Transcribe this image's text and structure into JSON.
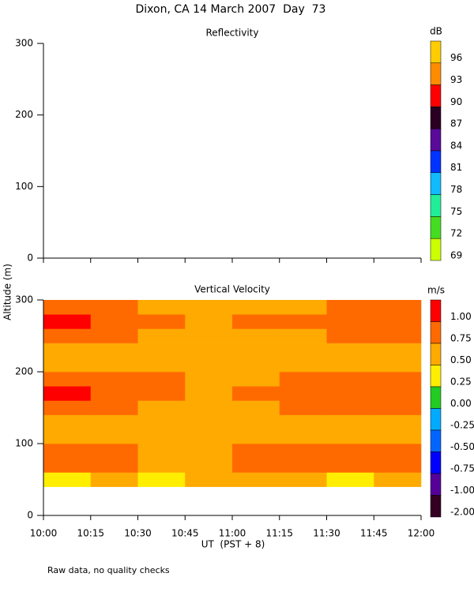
{
  "title": "Dixon, CA 14 March 2007  Day  73",
  "xlabel": "UT  (PST + 8)",
  "ylabel": "Altitude (m)",
  "footnote": "Raw data, no quality checks",
  "chart_data": [
    {
      "type": "heatmap",
      "title": "Reflectivity",
      "ylim": [
        0,
        300
      ],
      "yticks": [
        0,
        100,
        200,
        300
      ],
      "colorbar": {
        "label": "dB",
        "levels": [
          96,
          93,
          90,
          87,
          84,
          81,
          78,
          75,
          72,
          69
        ],
        "colors": [
          "#ffcc00",
          "#ff8c00",
          "#ff0000",
          "#2a0022",
          "#5a0a99",
          "#0033ff",
          "#11bbff",
          "#22ee99",
          "#44dd22",
          "#ccff00"
        ]
      }
    },
    {
      "type": "heatmap",
      "title": "Vertical Velocity",
      "ylim": [
        0,
        300
      ],
      "yticks": [
        0,
        100,
        200,
        300
      ],
      "xlim": [
        10,
        12
      ],
      "xticks": [
        {
          "value": 10,
          "label": "10:00"
        },
        {
          "value": 10.25,
          "label": "10:15"
        },
        {
          "value": 10.5,
          "label": "10:30"
        },
        {
          "value": 10.75,
          "label": "10:45"
        },
        {
          "value": 11,
          "label": "11:00"
        },
        {
          "value": 11.25,
          "label": "11:15"
        },
        {
          "value": 11.5,
          "label": "11:30"
        },
        {
          "value": 11.75,
          "label": "11:45"
        },
        {
          "value": 12,
          "label": "12:00"
        }
      ],
      "x_edges": [
        10,
        10.25,
        10.5,
        10.75,
        11,
        11.25,
        11.5,
        11.75,
        12
      ],
      "y_edges": [
        40,
        60,
        80,
        100,
        120,
        140,
        160,
        180,
        200,
        220,
        240,
        260,
        280,
        300
      ],
      "z": [
        [
          0.45,
          0.5,
          0.45,
          0.5,
          0.55,
          0.5,
          0.45,
          0.5
        ],
        [
          0.85,
          0.75,
          0.65,
          0.7,
          0.75,
          0.8,
          0.75,
          0.85
        ],
        [
          0.9,
          0.8,
          0.65,
          0.7,
          0.8,
          0.75,
          0.8,
          0.85
        ],
        [
          0.6,
          0.5,
          0.55,
          0.55,
          0.6,
          0.65,
          0.55,
          0.6
        ],
        [
          0.7,
          0.55,
          0.5,
          0.5,
          0.55,
          0.6,
          0.6,
          0.7
        ],
        [
          0.85,
          0.75,
          0.65,
          0.6,
          0.65,
          0.75,
          0.75,
          0.75
        ],
        [
          1.05,
          0.95,
          0.8,
          0.7,
          0.75,
          0.85,
          0.8,
          0.8
        ],
        [
          0.95,
          0.9,
          0.75,
          0.65,
          0.7,
          0.8,
          0.75,
          0.75
        ],
        [
          0.6,
          0.55,
          0.5,
          0.6,
          0.5,
          0.5,
          0.5,
          0.55
        ],
        [
          0.65,
          0.55,
          0.6,
          0.55,
          0.6,
          0.5,
          0.6,
          0.6
        ],
        [
          0.9,
          0.8,
          0.7,
          0.6,
          0.7,
          0.7,
          0.8,
          0.75
        ],
        [
          1.0,
          0.85,
          0.75,
          0.7,
          0.75,
          0.75,
          0.85,
          0.8
        ],
        [
          0.85,
          0.75,
          0.7,
          0.65,
          0.7,
          0.7,
          0.8,
          0.75
        ]
      ],
      "colorbar": {
        "label": "m/s",
        "levels": [
          {
            "value": 1,
            "label": "1.00"
          },
          {
            "value": 0.75,
            "label": "0.75"
          },
          {
            "value": 0.5,
            "label": "0.50"
          },
          {
            "value": 0.25,
            "label": "0.25"
          },
          {
            "value": 0,
            "label": "0.00"
          },
          {
            "value": -0.25,
            "label": "-0.25"
          },
          {
            "value": -0.5,
            "label": "-0.50"
          },
          {
            "value": -0.75,
            "label": "-0.75"
          },
          {
            "value": -1,
            "label": "-1.00"
          },
          {
            "value": -2,
            "label": "-2.00"
          }
        ],
        "colors": [
          "#ff0000",
          "#ff6a00",
          "#ffaa00",
          "#ffee00",
          "#22cc22",
          "#00aaff",
          "#0066ff",
          "#0000ff",
          "#550099",
          "#330022"
        ]
      }
    }
  ]
}
